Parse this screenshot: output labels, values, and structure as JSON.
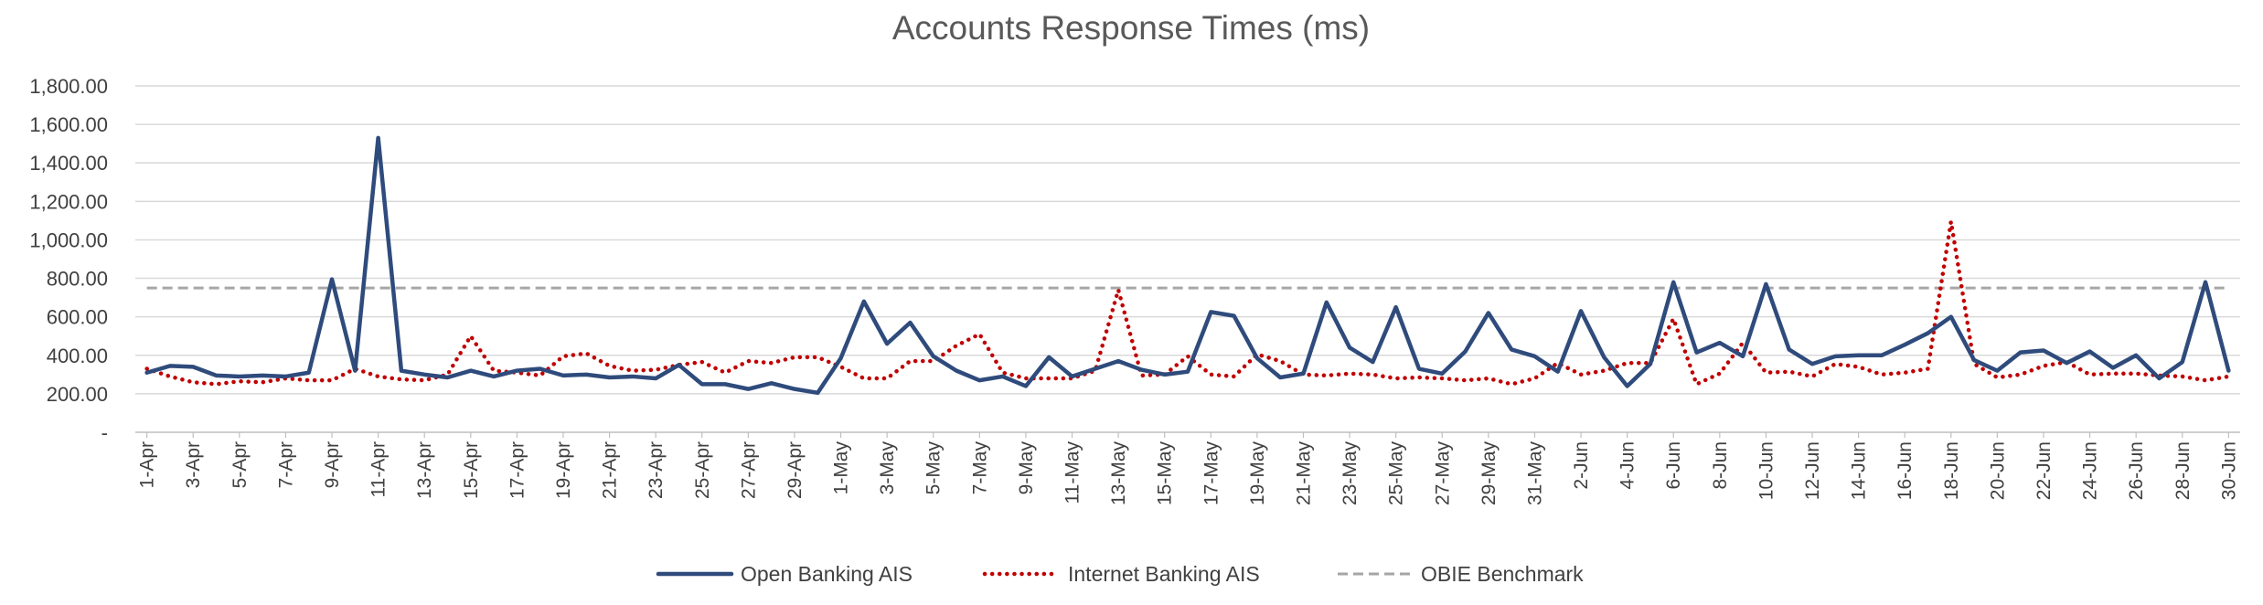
{
  "chart_data": {
    "type": "line",
    "title": "Accounts Response Times (ms)",
    "xlabel": "",
    "ylabel": "",
    "ylim": [
      0,
      1800
    ],
    "y_ticks": [
      0,
      200,
      400,
      600,
      800,
      1000,
      1200,
      1400,
      1600,
      1800
    ],
    "y_tick_labels": [
      "-",
      "200.00",
      "400.00",
      "600.00",
      "800.00",
      "1,000.00",
      "1,200.00",
      "1,400.00",
      "1,600.00",
      "1,800.00"
    ],
    "grid": "horizontal",
    "legend": "bottom",
    "x": [
      "1-Apr",
      "2-Apr",
      "3-Apr",
      "4-Apr",
      "5-Apr",
      "6-Apr",
      "7-Apr",
      "8-Apr",
      "9-Apr",
      "10-Apr",
      "11-Apr",
      "12-Apr",
      "13-Apr",
      "14-Apr",
      "15-Apr",
      "16-Apr",
      "17-Apr",
      "18-Apr",
      "19-Apr",
      "20-Apr",
      "21-Apr",
      "22-Apr",
      "23-Apr",
      "24-Apr",
      "25-Apr",
      "26-Apr",
      "27-Apr",
      "28-Apr",
      "29-Apr",
      "30-Apr",
      "1-May",
      "2-May",
      "3-May",
      "4-May",
      "5-May",
      "6-May",
      "7-May",
      "8-May",
      "9-May",
      "10-May",
      "11-May",
      "12-May",
      "13-May",
      "14-May",
      "15-May",
      "16-May",
      "17-May",
      "18-May",
      "19-May",
      "20-May",
      "21-May",
      "22-May",
      "23-May",
      "24-May",
      "25-May",
      "26-May",
      "27-May",
      "28-May",
      "29-May",
      "30-May",
      "31-May",
      "1-Jun",
      "2-Jun",
      "3-Jun",
      "4-Jun",
      "5-Jun",
      "6-Jun",
      "7-Jun",
      "8-Jun",
      "9-Jun",
      "10-Jun",
      "11-Jun",
      "12-Jun",
      "13-Jun",
      "14-Jun",
      "15-Jun",
      "16-Jun",
      "17-Jun",
      "18-Jun",
      "19-Jun",
      "20-Jun",
      "21-Jun",
      "22-Jun",
      "23-Jun",
      "24-Jun",
      "25-Jun",
      "26-Jun",
      "27-Jun",
      "28-Jun",
      "29-Jun",
      "30-Jun"
    ],
    "x_tick_labels": [
      "1-Apr",
      "3-Apr",
      "5-Apr",
      "7-Apr",
      "9-Apr",
      "11-Apr",
      "13-Apr",
      "15-Apr",
      "17-Apr",
      "19-Apr",
      "21-Apr",
      "23-Apr",
      "25-Apr",
      "27-Apr",
      "29-Apr",
      "1-May",
      "3-May",
      "5-May",
      "7-May",
      "9-May",
      "11-May",
      "13-May",
      "15-May",
      "17-May",
      "19-May",
      "21-May",
      "23-May",
      "25-May",
      "27-May",
      "29-May",
      "31-May",
      "2-Jun",
      "4-Jun",
      "6-Jun",
      "8-Jun",
      "10-Jun",
      "12-Jun",
      "14-Jun",
      "16-Jun",
      "18-Jun",
      "20-Jun",
      "22-Jun",
      "24-Jun",
      "26-Jun",
      "28-Jun",
      "30-Jun"
    ],
    "series": [
      {
        "name": "Open Banking AIS",
        "color": "#2F4B7C",
        "style": "solid",
        "values": [
          310,
          345,
          340,
          295,
          290,
          295,
          290,
          310,
          795,
          320,
          1530,
          320,
          300,
          285,
          320,
          290,
          320,
          330,
          295,
          300,
          285,
          290,
          280,
          350,
          250,
          250,
          225,
          255,
          225,
          205,
          385,
          680,
          460,
          570,
          395,
          320,
          270,
          290,
          240,
          390,
          290,
          330,
          370,
          325,
          300,
          315,
          625,
          605,
          385,
          285,
          305,
          675,
          440,
          365,
          650,
          330,
          305,
          420,
          620,
          430,
          395,
          315,
          630,
          390,
          240,
          355,
          780,
          415,
          465,
          395,
          770,
          430,
          355,
          395,
          400,
          400,
          455,
          515,
          600,
          375,
          320,
          415,
          425,
          360,
          420,
          335,
          400,
          280,
          365,
          780,
          320
        ]
      },
      {
        "name": "Internet Banking AIS",
        "color": "#C00000",
        "style": "dotted",
        "values": [
          330,
          290,
          260,
          250,
          265,
          260,
          280,
          270,
          270,
          330,
          290,
          275,
          270,
          300,
          500,
          320,
          310,
          295,
          395,
          410,
          345,
          320,
          325,
          350,
          365,
          310,
          370,
          360,
          390,
          390,
          340,
          280,
          280,
          370,
          370,
          450,
          510,
          310,
          280,
          280,
          280,
          320,
          740,
          295,
          300,
          395,
          300,
          290,
          405,
          370,
          300,
          295,
          305,
          300,
          280,
          285,
          280,
          270,
          280,
          250,
          280,
          360,
          300,
          320,
          360,
          360,
          590,
          250,
          305,
          465,
          310,
          315,
          290,
          355,
          340,
          300,
          310,
          330,
          1095,
          355,
          285,
          300,
          345,
          365,
          300,
          305,
          305,
          295,
          290,
          270,
          290
        ]
      },
      {
        "name": "OBIE Benchmark",
        "color": "#A6A6A6",
        "style": "dashed",
        "values": [
          750,
          750,
          750,
          750,
          750,
          750,
          750,
          750,
          750,
          750,
          750,
          750,
          750,
          750,
          750,
          750,
          750,
          750,
          750,
          750,
          750,
          750,
          750,
          750,
          750,
          750,
          750,
          750,
          750,
          750,
          750,
          750,
          750,
          750,
          750,
          750,
          750,
          750,
          750,
          750,
          750,
          750,
          750,
          750,
          750,
          750,
          750,
          750,
          750,
          750,
          750,
          750,
          750,
          750,
          750,
          750,
          750,
          750,
          750,
          750,
          750,
          750,
          750,
          750,
          750,
          750,
          750,
          750,
          750,
          750,
          750,
          750,
          750,
          750,
          750,
          750,
          750,
          750,
          750,
          750,
          750,
          750,
          750,
          750,
          750,
          750,
          750,
          750,
          750,
          750,
          750
        ]
      }
    ]
  }
}
